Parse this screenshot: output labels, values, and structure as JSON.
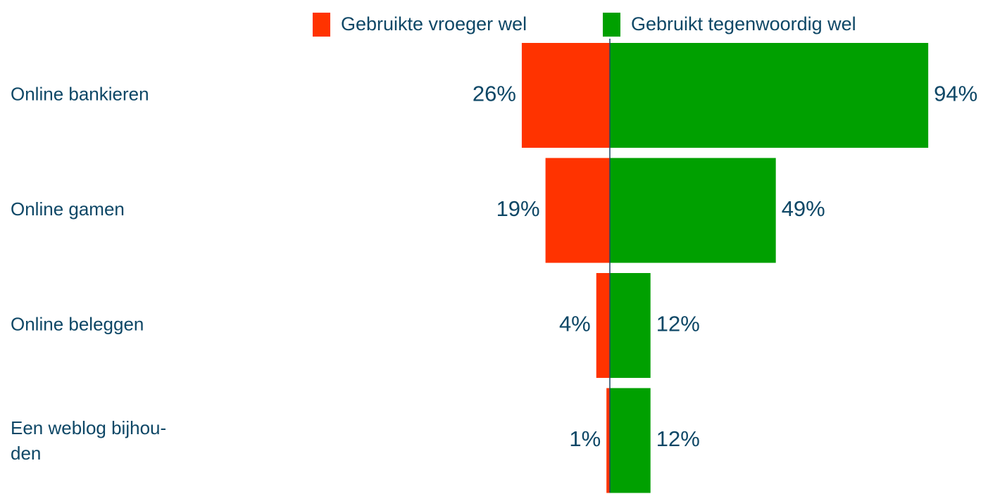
{
  "chart_data": {
    "type": "diverging_bar",
    "categories": [
      "Online bankieren",
      "Online gamen",
      "Online beleggen",
      "Een weblog bijhou-\nden"
    ],
    "series": [
      {
        "name": "Gebruikte vroeger wel",
        "color": "#ff3300",
        "values": [
          26,
          19,
          4,
          1
        ],
        "value_labels": [
          "26%",
          "19%",
          "4%",
          "1%"
        ]
      },
      {
        "name": "Gebruikt tegenwoordig wel",
        "color": "#00a000",
        "values": [
          94,
          49,
          12,
          12
        ],
        "value_labels": [
          "94%",
          "49%",
          "12%",
          "12%"
        ]
      }
    ],
    "legend": "top"
  }
}
